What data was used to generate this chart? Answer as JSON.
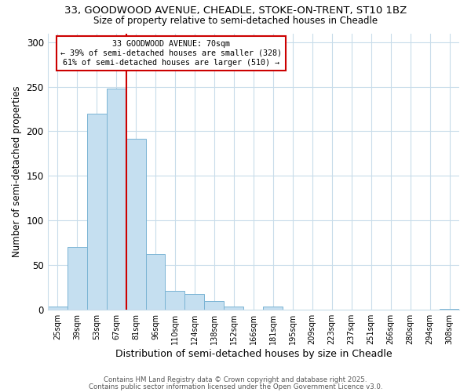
{
  "title": "33, GOODWOOD AVENUE, CHEADLE, STOKE-ON-TRENT, ST10 1BZ",
  "subtitle": "Size of property relative to semi-detached houses in Cheadle",
  "xlabel": "Distribution of semi-detached houses by size in Cheadle",
  "ylabel": "Number of semi-detached properties",
  "bin_labels": [
    "25sqm",
    "39sqm",
    "53sqm",
    "67sqm",
    "81sqm",
    "96sqm",
    "110sqm",
    "124sqm",
    "138sqm",
    "152sqm",
    "166sqm",
    "181sqm",
    "195sqm",
    "209sqm",
    "223sqm",
    "237sqm",
    "251sqm",
    "266sqm",
    "280sqm",
    "294sqm",
    "308sqm"
  ],
  "bin_values": [
    3,
    70,
    220,
    248,
    192,
    62,
    21,
    17,
    9,
    3,
    0,
    3,
    0,
    0,
    0,
    0,
    0,
    0,
    0,
    0,
    1
  ],
  "bar_color": "#c5dff0",
  "bar_edge_color": "#7ab4d4",
  "property_bin_index": 3,
  "vline_color": "#cc0000",
  "smaller_pct": 39,
  "smaller_count": 328,
  "larger_pct": 61,
  "larger_count": 510,
  "ylim": [
    0,
    310
  ],
  "yticks": [
    0,
    50,
    100,
    150,
    200,
    250,
    300
  ],
  "annotation_box_color": "#ffffff",
  "annotation_box_edge": "#cc0000",
  "footer1": "Contains HM Land Registry data © Crown copyright and database right 2025.",
  "footer2": "Contains public sector information licensed under the Open Government Licence v3.0.",
  "bg_color": "#ffffff",
  "grid_color": "#c8dcea"
}
